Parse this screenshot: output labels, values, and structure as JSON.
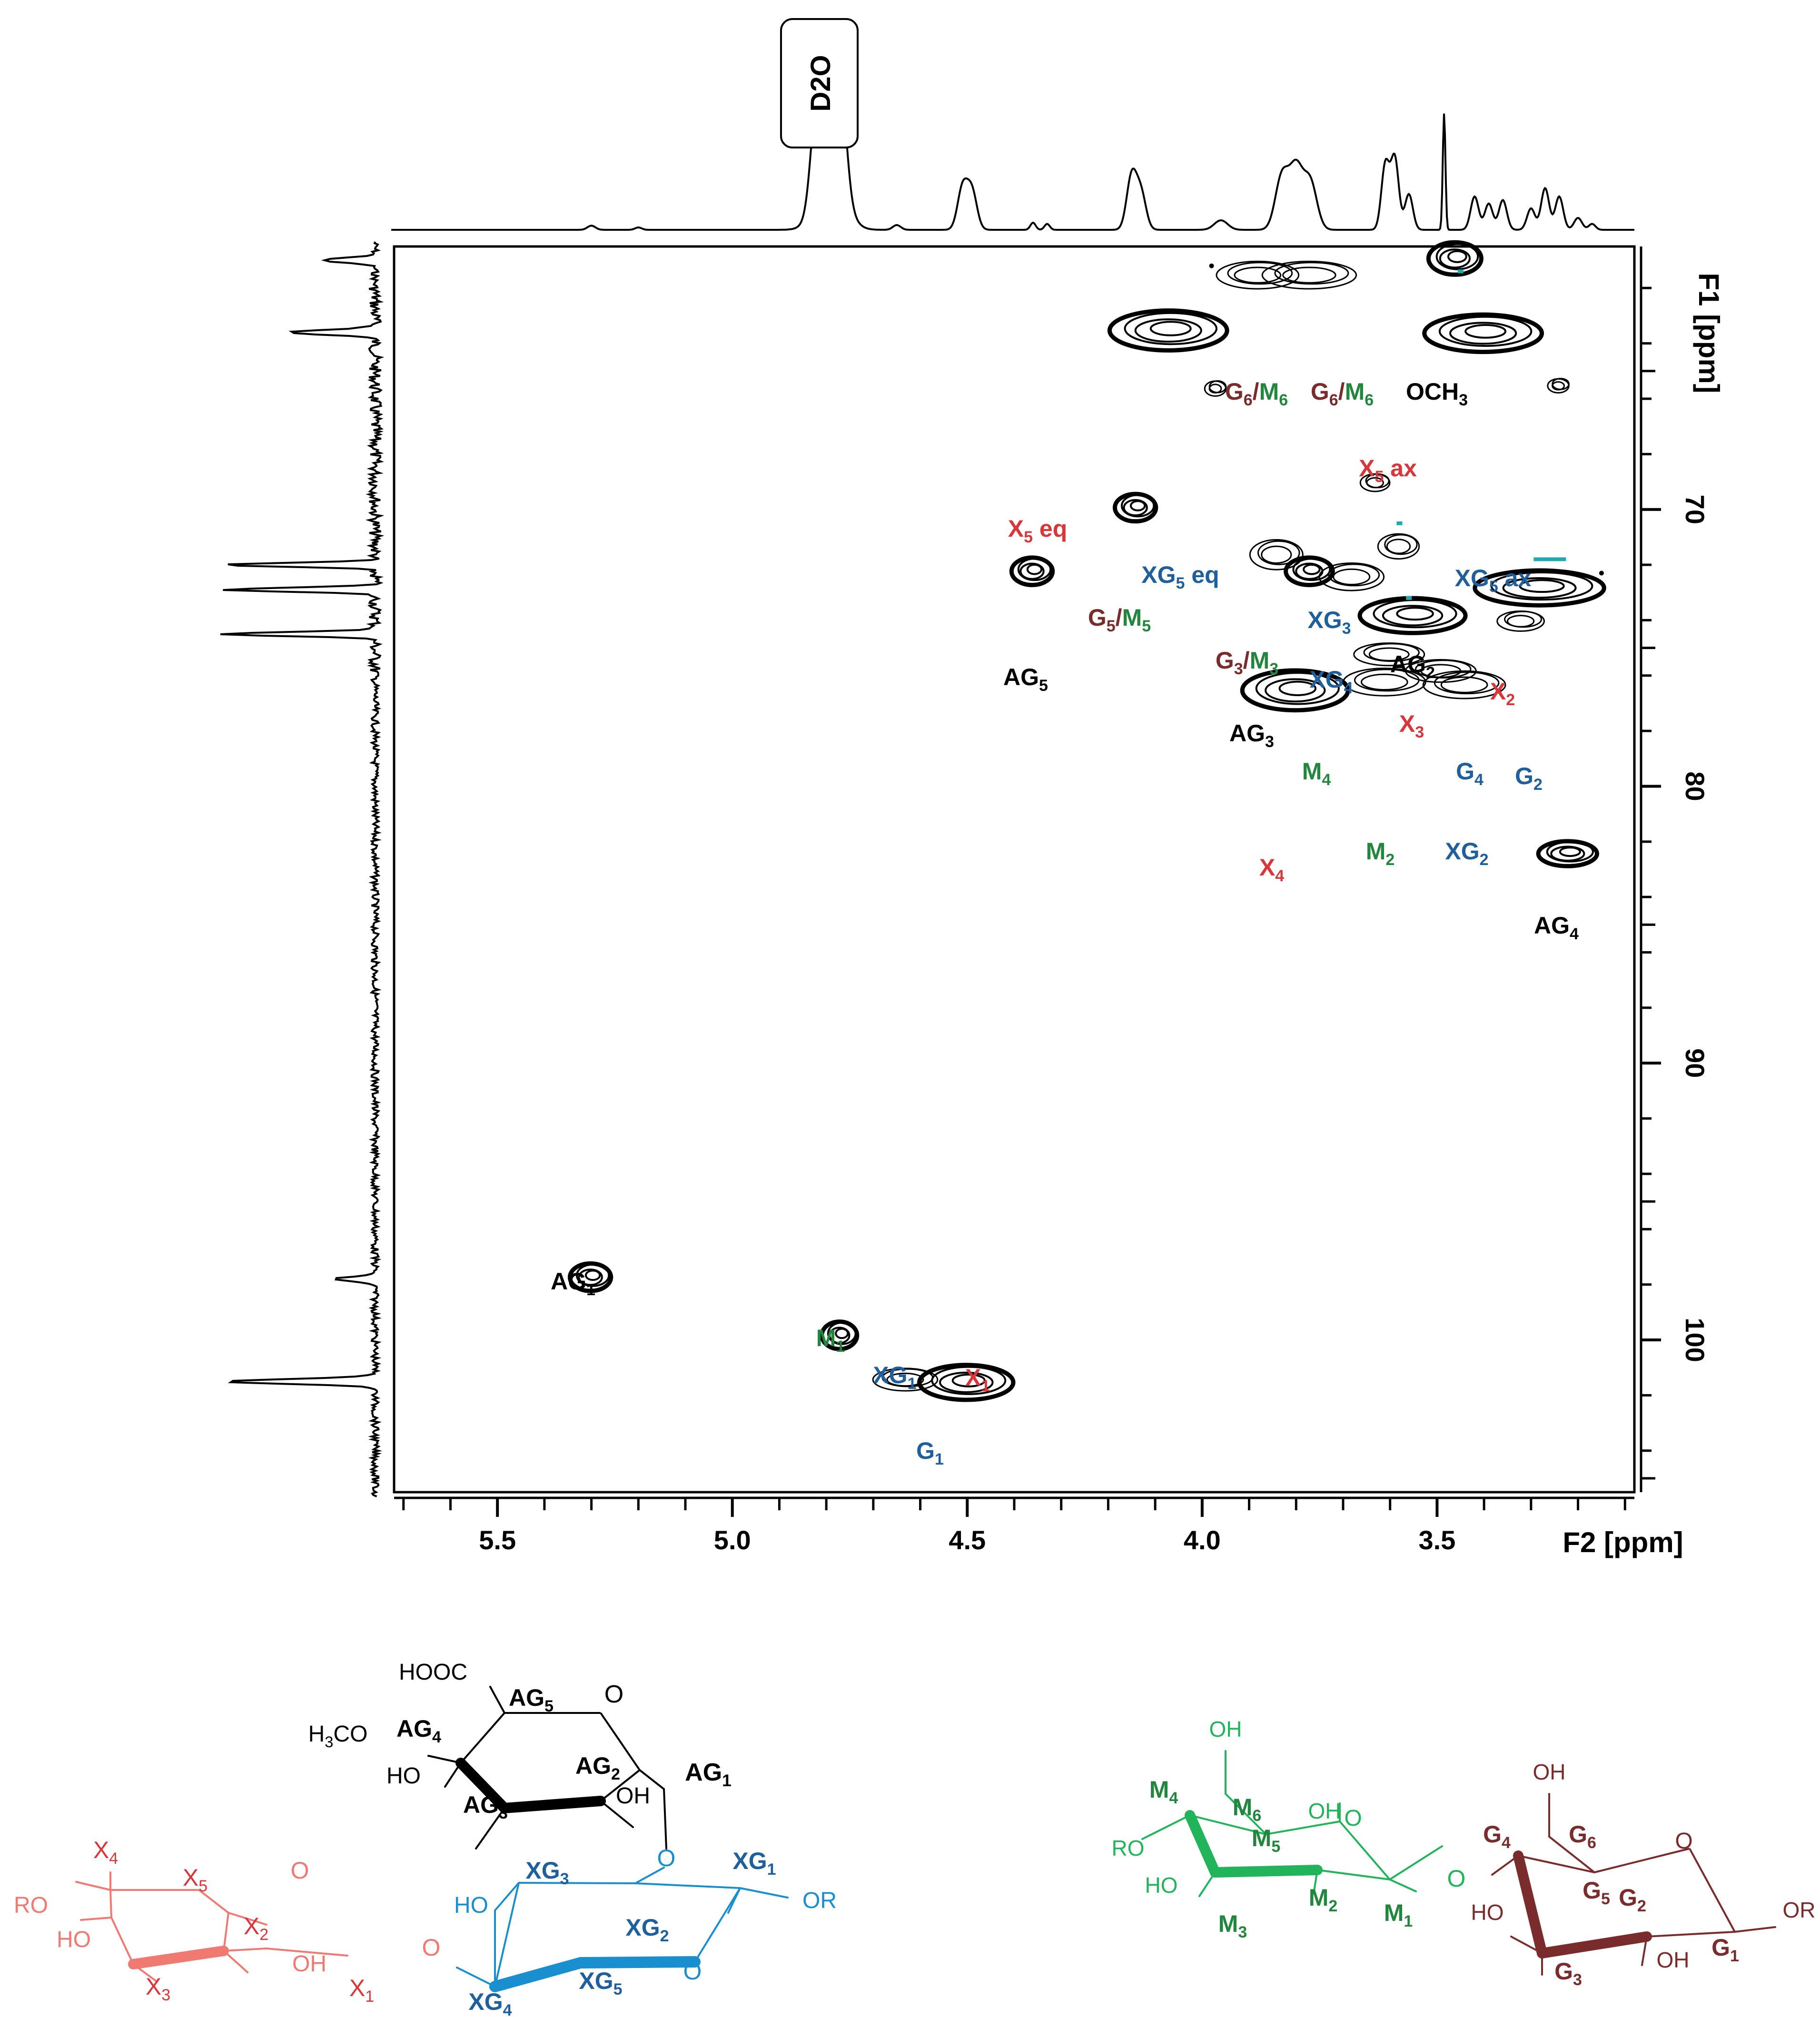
{
  "chart_data": {
    "type": "scatter",
    "subtype": "2D HSQC NMR contour spectrum",
    "xlabel": "F2 [ppm]",
    "ylabel": "F1 [ppm]",
    "xlim": [
      5.72,
      3.08
    ],
    "ylim": [
      60.5,
      105.5
    ],
    "x_ticks": [
      "5.5",
      "5.0",
      "4.5",
      "4.0",
      "3.5"
    ],
    "x_tick_values": [
      5.5,
      5.0,
      4.5,
      4.0,
      3.5
    ],
    "y_ticks": [
      "70",
      "80",
      "90",
      "100"
    ],
    "y_tick_values": [
      70,
      80,
      90,
      100
    ],
    "grid": false,
    "solvent_label": "D2O",
    "solvent_shift": 4.79,
    "peaks": [
      {
        "id": "AG1",
        "x": 5.3,
        "y": 97.7
      },
      {
        "id": "M1",
        "x": 4.77,
        "y": 99.8
      },
      {
        "id": "XG1",
        "x": 4.63,
        "y": 101.4
      },
      {
        "id": "X1",
        "x": 4.5,
        "y": 101.5
      },
      {
        "id": "AG5",
        "x": 4.36,
        "y": 72.2
      },
      {
        "id": "G5/M5",
        "x": 4.14,
        "y": 69.9
      },
      {
        "id": "X5 eq",
        "x": 4.07,
        "y": 63.5
      },
      {
        "id": "XG5 eq",
        "x": 3.97,
        "y": 65.6
      },
      {
        "id": "G6/M6 a",
        "x": 3.88,
        "y": 61.5
      },
      {
        "id": "G6/M6 b",
        "x": 3.77,
        "y": 61.5
      },
      {
        "id": "OCH3",
        "x": 3.46,
        "y": 60.9
      },
      {
        "id": "X5 ax",
        "x": 3.4,
        "y": 63.6
      },
      {
        "id": "XG5 ax",
        "x": 3.24,
        "y": 65.5
      },
      {
        "id": "G3/M3",
        "x": 3.84,
        "y": 71.6
      },
      {
        "id": "AG3",
        "x": 3.77,
        "y": 72.2
      },
      {
        "id": "XG4",
        "x": 3.68,
        "y": 72.4
      },
      {
        "id": "XG3",
        "x": 3.63,
        "y": 69.0
      },
      {
        "id": "AG2",
        "x": 3.58,
        "y": 71.3
      },
      {
        "id": "X3",
        "x": 3.55,
        "y": 73.8
      },
      {
        "id": "X2",
        "x": 3.28,
        "y": 72.8
      },
      {
        "id": "M4",
        "x": 3.6,
        "y": 75.2
      },
      {
        "id": "G4",
        "x": 3.49,
        "y": 75.8
      },
      {
        "id": "G2",
        "x": 3.32,
        "y": 74.0
      },
      {
        "id": "X4",
        "x": 3.8,
        "y": 76.5
      },
      {
        "id": "M2",
        "x": 3.61,
        "y": 76.2
      },
      {
        "id": "XG2",
        "x": 3.44,
        "y": 76.3
      },
      {
        "id": "AG4",
        "x": 3.22,
        "y": 82.4
      }
    ],
    "labels": [
      {
        "text": "AG",
        "sub": "1",
        "color": "black"
      },
      {
        "text": "M",
        "sub": "1",
        "color": "green"
      },
      {
        "text": "XG",
        "sub": "1",
        "color": "blue"
      },
      {
        "text": "X",
        "sub": "1",
        "color": "red"
      },
      {
        "text": "G",
        "sub": "1",
        "color": "blue"
      },
      {
        "text": "AG",
        "sub": "5",
        "color": "black"
      },
      {
        "text": "G",
        "sub": "5",
        "color": "maroon",
        "text2": "M",
        "sub2": "5",
        "color2": "green"
      },
      {
        "text": "X",
        "sub": "5",
        "suffix": " eq",
        "color": "red"
      },
      {
        "text": "XG",
        "sub": "5",
        "suffix": " eq",
        "color": "blue"
      },
      {
        "text": "G",
        "sub": "6",
        "color": "maroon",
        "text2": "M",
        "sub2": "6",
        "color2": "green"
      },
      {
        "text": "G",
        "sub": "6",
        "color": "maroon",
        "text2": "M",
        "sub2": "6",
        "color2": "green"
      },
      {
        "text": "OCH",
        "sub": "3",
        "color": "black"
      },
      {
        "text": "X",
        "sub": "5",
        "suffix": " ax",
        "color": "red"
      },
      {
        "text": "XG",
        "sub": "5",
        "suffix": " ax",
        "color": "blue"
      },
      {
        "text": "XG",
        "sub": "3",
        "color": "blue"
      },
      {
        "text": "G",
        "sub": "3",
        "color": "maroon",
        "text2": "M",
        "sub2": "3",
        "color2": "green"
      },
      {
        "text": "XG",
        "sub": "4",
        "color": "blue"
      },
      {
        "text": "AG",
        "sub": "2",
        "color": "black"
      },
      {
        "text": "X",
        "sub": "2",
        "color": "red"
      },
      {
        "text": "X",
        "sub": "3",
        "color": "red"
      },
      {
        "text": "AG",
        "sub": "3",
        "color": "black"
      },
      {
        "text": "M",
        "sub": "4",
        "color": "green"
      },
      {
        "text": "G",
        "sub": "4",
        "color": "blue"
      },
      {
        "text": "G",
        "sub": "2",
        "color": "blue"
      },
      {
        "text": "X",
        "sub": "4",
        "color": "red"
      },
      {
        "text": "M",
        "sub": "2",
        "color": "green"
      },
      {
        "text": "XG",
        "sub": "2",
        "color": "blue"
      },
      {
        "text": "AG",
        "sub": "4",
        "color": "black"
      }
    ]
  },
  "colors": {
    "red": "#d7373a",
    "blue": "#1f5f9b",
    "green": "#23863e",
    "maroon": "#7a2b2b",
    "black": "#000000",
    "xylose_ring": "#f07a72",
    "glucuronic_ring": "#1a8fd0",
    "mannose_ring": "#22b45a",
    "glucose_ring": "#7a2b2b",
    "cyan_marks": "#22a8b0"
  },
  "structures": {
    "glucuronic": {
      "labels": [
        {
          "text": "HOOC"
        },
        {
          "text": "AG",
          "sub": "5",
          "bold": true
        },
        {
          "text": "O"
        },
        {
          "text": "H",
          "sub": "3",
          "text_after": "CO"
        },
        {
          "text": "AG",
          "sub": "4",
          "bold": true
        },
        {
          "text": "HO"
        },
        {
          "text": "AG",
          "sub": "2",
          "bold": true
        },
        {
          "text": "OH"
        },
        {
          "text": "AG",
          "sub": "1",
          "bold": true
        },
        {
          "text": "AG",
          "sub": "3",
          "bold": true
        },
        {
          "text": "O"
        }
      ]
    },
    "xylose": {
      "labels": [
        {
          "text": "X",
          "sub": "4"
        },
        {
          "text": "X",
          "sub": "5"
        },
        {
          "text": "O"
        },
        {
          "text": "RO"
        },
        {
          "text": "HO"
        },
        {
          "text": "X",
          "sub": "2"
        },
        {
          "text": "OH"
        },
        {
          "text": "X",
          "sub": "3"
        },
        {
          "text": "X",
          "sub": "1"
        },
        {
          "text": "O"
        }
      ]
    },
    "glucuronoxylan": {
      "labels": [
        {
          "text": "XG",
          "sub": "3"
        },
        {
          "text": "XG",
          "sub": "1"
        },
        {
          "text": "HO"
        },
        {
          "text": "XG",
          "sub": "2"
        },
        {
          "text": "OR"
        },
        {
          "text": "O"
        },
        {
          "text": "XG",
          "sub": "4"
        },
        {
          "text": "XG",
          "sub": "5"
        }
      ]
    },
    "mannose": {
      "labels": [
        {
          "text": "OH"
        },
        {
          "text": "M",
          "sub": "4"
        },
        {
          "text": "M",
          "sub": "6"
        },
        {
          "text": "OH"
        },
        {
          "text": "O"
        },
        {
          "text": "RO"
        },
        {
          "text": "M",
          "sub": "5"
        },
        {
          "text": "HO"
        },
        {
          "text": "M",
          "sub": "2"
        },
        {
          "text": "M",
          "sub": "1"
        },
        {
          "text": "M",
          "sub": "3"
        },
        {
          "text": "O"
        }
      ]
    },
    "glucose": {
      "labels": [
        {
          "text": "OH"
        },
        {
          "text": "G",
          "sub": "4"
        },
        {
          "text": "G",
          "sub": "6"
        },
        {
          "text": "O"
        },
        {
          "text": "G",
          "sub": "5"
        },
        {
          "text": "HO"
        },
        {
          "text": "G",
          "sub": "2"
        },
        {
          "text": "OR"
        },
        {
          "text": "G",
          "sub": "3"
        },
        {
          "text": "OH"
        },
        {
          "text": "G",
          "sub": "1"
        }
      ]
    }
  }
}
